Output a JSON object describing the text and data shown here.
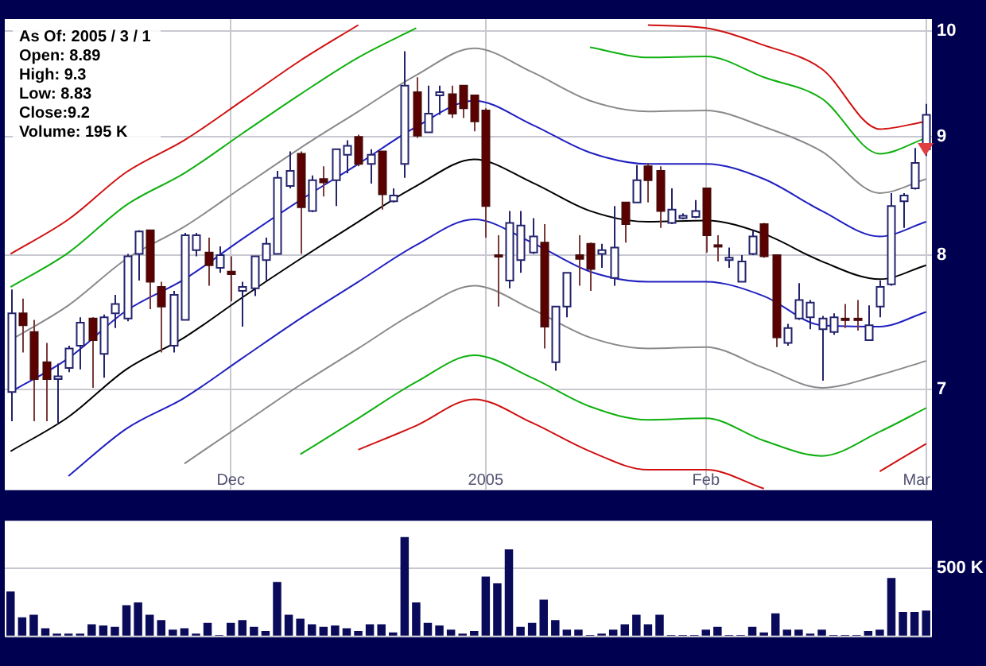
{
  "chart_data": [
    {
      "type": "candlestick",
      "annotations": [
        "As Of: 2005 / 3 / 1",
        "Open: 8.89",
        "High: 9.3",
        "Low: 8.83",
        "Close:9.2",
        "Volume: 195 K"
      ],
      "categories": [
        null,
        null,
        null,
        null,
        null,
        null,
        null,
        null,
        null,
        null,
        null,
        null,
        null,
        null,
        null,
        null,
        null,
        null,
        null,
        "Dec",
        null,
        null,
        null,
        null,
        null,
        null,
        null,
        null,
        null,
        null,
        null,
        null,
        null,
        null,
        null,
        null,
        null,
        null,
        null,
        null,
        null,
        "2005",
        null,
        null,
        null,
        null,
        null,
        null,
        null,
        null,
        null,
        null,
        null,
        null,
        null,
        null,
        null,
        null,
        null,
        null,
        "Feb",
        null,
        null,
        null,
        null,
        null,
        null,
        null,
        null,
        null,
        null,
        null,
        null,
        null,
        null,
        null,
        null,
        null,
        null,
        "Mar"
      ],
      "ohlc": [
        [
          6.98,
          7.73,
          6.78,
          7.55
        ],
        [
          7.55,
          7.66,
          7.26,
          7.46
        ],
        [
          7.41,
          7.5,
          6.78,
          7.07
        ],
        [
          7.19,
          7.33,
          6.78,
          7.07
        ],
        [
          7.07,
          7.18,
          6.77,
          7.09
        ],
        [
          7.15,
          7.31,
          7.12,
          7.29
        ],
        [
          7.31,
          7.52,
          7.14,
          7.48
        ],
        [
          7.51,
          7.52,
          7.01,
          7.35
        ],
        [
          7.25,
          7.54,
          7.08,
          7.52
        ],
        [
          7.55,
          7.69,
          7.44,
          7.62
        ],
        [
          7.51,
          8.01,
          7.49,
          7.99
        ],
        [
          8.01,
          8.2,
          7.8,
          8.19
        ],
        [
          8.2,
          8.2,
          7.58,
          7.79
        ],
        [
          7.75,
          7.79,
          7.26,
          7.6
        ],
        [
          7.31,
          7.72,
          7.26,
          7.69
        ],
        [
          7.5,
          8.18,
          7.5,
          8.16
        ],
        [
          8.04,
          8.18,
          7.99,
          8.16
        ],
        [
          8.02,
          8.14,
          7.76,
          7.92
        ],
        [
          7.9,
          8.07,
          7.86,
          8.0
        ],
        [
          7.87,
          7.99,
          7.64,
          7.85
        ],
        [
          7.72,
          7.79,
          7.45,
          7.75
        ],
        [
          7.74,
          7.99,
          7.68,
          7.99
        ],
        [
          7.96,
          8.14,
          7.8,
          8.09
        ],
        [
          8.01,
          8.7,
          8.01,
          8.64
        ],
        [
          8.57,
          8.87,
          8.55,
          8.7
        ],
        [
          8.85,
          8.87,
          8.01,
          8.39
        ],
        [
          8.36,
          8.66,
          8.35,
          8.62
        ],
        [
          8.63,
          8.74,
          8.48,
          8.6
        ],
        [
          8.62,
          8.89,
          8.4,
          8.89
        ],
        [
          8.84,
          8.97,
          8.68,
          8.92
        ],
        [
          9.0,
          9.02,
          8.74,
          8.76
        ],
        [
          8.76,
          8.89,
          8.59,
          8.84
        ],
        [
          8.87,
          8.87,
          8.37,
          8.5
        ],
        [
          8.44,
          8.55,
          8.43,
          8.49
        ],
        [
          8.76,
          9.8,
          8.64,
          9.47
        ],
        [
          9.41,
          9.55,
          8.99,
          9.01
        ],
        [
          9.04,
          9.47,
          9.04,
          9.21
        ],
        [
          9.38,
          9.47,
          9.2,
          9.41
        ],
        [
          9.39,
          9.47,
          9.17,
          9.21
        ],
        [
          9.47,
          9.47,
          9.17,
          9.26
        ],
        [
          9.38,
          9.38,
          9.05,
          9.14
        ],
        [
          9.24,
          9.26,
          8.14,
          8.4
        ],
        [
          8.0,
          8.16,
          7.6,
          7.99
        ],
        [
          7.8,
          8.36,
          7.74,
          8.26
        ],
        [
          7.96,
          8.36,
          7.86,
          8.24
        ],
        [
          8.02,
          8.3,
          8.01,
          8.15
        ],
        [
          8.1,
          8.25,
          7.29,
          7.45
        ],
        [
          7.19,
          7.6,
          7.13,
          7.6
        ],
        [
          7.6,
          7.86,
          7.52,
          7.86
        ],
        [
          8.0,
          8.16,
          7.76,
          7.97
        ],
        [
          8.09,
          8.1,
          7.72,
          7.89
        ],
        [
          8.01,
          8.09,
          7.9,
          8.04
        ],
        [
          7.82,
          8.4,
          7.76,
          8.06
        ],
        [
          8.43,
          8.43,
          8.1,
          8.25
        ],
        [
          8.43,
          8.75,
          8.43,
          8.62
        ],
        [
          8.74,
          8.77,
          8.43,
          8.62
        ],
        [
          8.7,
          8.74,
          8.22,
          8.36
        ],
        [
          8.26,
          8.55,
          8.25,
          8.37
        ],
        [
          8.3,
          8.34,
          8.29,
          8.32
        ],
        [
          8.31,
          8.45,
          8.3,
          8.36
        ],
        [
          8.55,
          8.55,
          8.02,
          8.16
        ],
        [
          8.08,
          8.16,
          7.95,
          8.07
        ],
        [
          7.96,
          8.06,
          7.9,
          7.98
        ],
        [
          7.79,
          8.0,
          7.79,
          7.95
        ],
        [
          8.01,
          8.2,
          8.0,
          8.15
        ],
        [
          8.25,
          8.26,
          7.98,
          7.99
        ],
        [
          8.0,
          8.0,
          7.3,
          7.37
        ],
        [
          7.33,
          7.47,
          7.31,
          7.44
        ],
        [
          7.51,
          7.78,
          7.5,
          7.65
        ],
        [
          7.52,
          7.65,
          7.43,
          7.63
        ],
        [
          7.43,
          7.53,
          7.06,
          7.51
        ],
        [
          7.41,
          7.55,
          7.39,
          7.52
        ],
        [
          7.51,
          7.62,
          7.44,
          7.5
        ],
        [
          7.51,
          7.65,
          7.42,
          7.5
        ],
        [
          7.35,
          7.61,
          7.35,
          7.46
        ],
        [
          7.6,
          7.8,
          7.52,
          7.75
        ],
        [
          7.77,
          8.51,
          7.76,
          8.4
        ],
        [
          8.44,
          8.51,
          8.22,
          8.49
        ],
        [
          8.55,
          8.9,
          8.54,
          8.77
        ],
        [
          8.89,
          9.3,
          8.83,
          9.2
        ]
      ],
      "series": [
        {
          "type": "line",
          "color": "#d01010",
          "values": [
            8.01,
            null,
            null,
            null,
            null,
            8.29,
            null,
            null,
            null,
            null,
            8.69,
            null,
            null,
            null,
            null,
            8.97,
            null,
            null,
            null,
            null,
            9.33,
            null,
            null,
            null,
            null,
            9.71,
            null,
            null,
            null,
            null,
            10.06,
            null,
            null,
            null,
            null,
            null,
            null,
            null,
            null,
            null,
            null,
            null,
            null,
            null,
            null,
            null,
            null,
            null,
            null,
            null,
            null,
            null,
            null,
            null,
            null,
            10.06,
            null,
            null,
            null,
            null,
            10.03,
            null,
            null,
            null,
            null,
            9.86,
            null,
            null,
            null,
            null,
            9.63,
            null,
            null,
            null,
            null,
            9.07,
            null,
            null,
            null,
            9.14
          ]
        },
        {
          "type": "line",
          "color": "#10b010",
          "values": [
            7.75,
            null,
            null,
            null,
            null,
            8.02,
            null,
            null,
            null,
            null,
            8.41,
            null,
            null,
            null,
            null,
            8.68,
            null,
            null,
            null,
            null,
            9.03,
            null,
            null,
            null,
            null,
            9.39,
            null,
            null,
            null,
            null,
            9.74,
            null,
            null,
            null,
            null,
            10.03,
            null,
            null,
            null,
            null,
            null,
            null,
            null,
            null,
            null,
            null,
            null,
            null,
            null,
            null,
            9.84,
            null,
            null,
            null,
            null,
            9.74,
            null,
            null,
            null,
            null,
            9.75,
            null,
            null,
            null,
            null,
            9.55,
            null,
            null,
            null,
            null,
            9.35,
            null,
            null,
            null,
            null,
            8.85,
            null,
            null,
            null,
            8.99
          ]
        },
        {
          "type": "line",
          "color": "#8a8a8a",
          "values": [
            7.35,
            null,
            null,
            null,
            null,
            7.61,
            null,
            null,
            null,
            null,
            7.97,
            null,
            null,
            null,
            null,
            8.23,
            null,
            null,
            null,
            null,
            8.56,
            null,
            null,
            null,
            null,
            8.9,
            null,
            null,
            null,
            null,
            9.23,
            null,
            null,
            null,
            null,
            9.57,
            null,
            null,
            null,
            null,
            9.83,
            null,
            null,
            null,
            null,
            9.6,
            null,
            null,
            null,
            null,
            9.33,
            null,
            null,
            null,
            null,
            9.23,
            null,
            null,
            null,
            null,
            9.24,
            null,
            null,
            null,
            null,
            9.09,
            null,
            null,
            null,
            null,
            8.87,
            null,
            null,
            null,
            null,
            8.51,
            null,
            null,
            null,
            8.63
          ]
        },
        {
          "type": "line",
          "color": "#2020c0",
          "values": [
            6.98,
            null,
            null,
            null,
            null,
            7.22,
            null,
            null,
            null,
            null,
            7.57,
            null,
            null,
            null,
            null,
            7.81,
            null,
            null,
            null,
            null,
            8.13,
            null,
            null,
            null,
            null,
            8.45,
            null,
            null,
            null,
            null,
            8.76,
            null,
            null,
            null,
            null,
            9.09,
            null,
            null,
            null,
            null,
            9.33,
            null,
            null,
            null,
            null,
            9.11,
            null,
            null,
            null,
            null,
            8.86,
            null,
            null,
            null,
            null,
            8.76,
            null,
            null,
            null,
            null,
            8.76,
            null,
            null,
            null,
            null,
            8.63,
            null,
            null,
            null,
            null,
            8.36,
            null,
            null,
            null,
            null,
            8.15,
            null,
            null,
            null,
            8.27
          ]
        },
        {
          "type": "line",
          "color": "#000000",
          "values": [
            6.58,
            null,
            null,
            null,
            null,
            6.81,
            null,
            null,
            null,
            null,
            7.14,
            null,
            null,
            null,
            null,
            7.37,
            null,
            null,
            null,
            null,
            7.67,
            null,
            null,
            null,
            null,
            7.97,
            null,
            null,
            null,
            null,
            8.27,
            null,
            null,
            null,
            null,
            8.57,
            null,
            null,
            null,
            null,
            8.8,
            null,
            null,
            null,
            null,
            8.6,
            null,
            null,
            null,
            null,
            8.36,
            null,
            null,
            null,
            null,
            8.27,
            null,
            null,
            null,
            null,
            8.28,
            null,
            null,
            null,
            null,
            8.17,
            null,
            null,
            null,
            null,
            7.95,
            null,
            null,
            null,
            null,
            7.81,
            null,
            null,
            null,
            7.92
          ]
        },
        {
          "type": "line",
          "color": "#2020c0",
          "values": [
            null,
            null,
            null,
            null,
            null,
            6.42,
            null,
            null,
            null,
            null,
            6.73,
            null,
            null,
            null,
            null,
            6.94,
            null,
            null,
            null,
            null,
            7.22,
            null,
            null,
            null,
            null,
            7.51,
            null,
            null,
            null,
            null,
            7.79,
            null,
            null,
            null,
            null,
            8.08,
            null,
            null,
            null,
            null,
            8.29,
            null,
            null,
            null,
            null,
            8.1,
            null,
            null,
            null,
            null,
            7.87,
            null,
            null,
            null,
            null,
            7.79,
            null,
            null,
            null,
            null,
            7.79,
            null,
            null,
            null,
            null,
            7.68,
            null,
            null,
            null,
            null,
            7.46,
            null,
            null,
            null,
            null,
            7.45,
            null,
            null,
            null,
            7.56
          ]
        },
        {
          "type": "line",
          "color": "#8a8a8a",
          "values": [
            null,
            null,
            null,
            null,
            null,
            null,
            null,
            null,
            null,
            null,
            null,
            null,
            null,
            null,
            null,
            6.5,
            null,
            null,
            null,
            null,
            6.76,
            null,
            null,
            null,
            null,
            7.03,
            null,
            null,
            null,
            null,
            7.29,
            null,
            null,
            null,
            null,
            7.56,
            null,
            null,
            null,
            null,
            7.76,
            null,
            null,
            null,
            null,
            7.58,
            null,
            null,
            null,
            null,
            7.37,
            null,
            null,
            null,
            null,
            7.29,
            null,
            null,
            null,
            null,
            7.3,
            null,
            null,
            null,
            null,
            7.15,
            null,
            null,
            null,
            null,
            7.01,
            null,
            null,
            null,
            null,
            7.1,
            null,
            null,
            null,
            7.2
          ]
        },
        {
          "type": "line",
          "color": "#10b010",
          "values": [
            null,
            null,
            null,
            null,
            null,
            null,
            null,
            null,
            null,
            null,
            null,
            null,
            null,
            null,
            null,
            null,
            null,
            null,
            null,
            null,
            null,
            null,
            null,
            null,
            null,
            6.56,
            null,
            null,
            null,
            null,
            6.8,
            null,
            null,
            null,
            null,
            7.05,
            null,
            null,
            null,
            null,
            7.24,
            null,
            null,
            null,
            null,
            7.08,
            null,
            null,
            null,
            null,
            6.88,
            null,
            null,
            null,
            null,
            6.79,
            null,
            null,
            null,
            null,
            6.8,
            null,
            null,
            null,
            null,
            6.65,
            null,
            null,
            null,
            null,
            6.55,
            null,
            null,
            null,
            null,
            6.71,
            null,
            null,
            null,
            6.87
          ]
        },
        {
          "type": "line",
          "color": "#d01010",
          "values": [
            null,
            null,
            null,
            null,
            null,
            null,
            null,
            null,
            null,
            null,
            null,
            null,
            null,
            null,
            null,
            null,
            null,
            null,
            null,
            null,
            null,
            null,
            null,
            null,
            null,
            null,
            null,
            null,
            null,
            null,
            6.59,
            null,
            null,
            null,
            null,
            6.75,
            null,
            null,
            null,
            null,
            6.93,
            null,
            null,
            null,
            null,
            6.77,
            null,
            null,
            null,
            null,
            6.58,
            null,
            null,
            null,
            null,
            6.46,
            null,
            null,
            null,
            null,
            6.46,
            null,
            null,
            null,
            null,
            6.34,
            null,
            null,
            null,
            null,
            null,
            null,
            null,
            null,
            null,
            6.45,
            null,
            null,
            null,
            6.63
          ]
        }
      ],
      "ylim": [
        6.33,
        10.12
      ],
      "yticks": [
        7,
        8,
        9,
        10
      ],
      "log": true,
      "grid": true
    },
    {
      "type": "bar",
      "categories": [
        null,
        null,
        null,
        null,
        null,
        null,
        null,
        null,
        null,
        null,
        null,
        null,
        null,
        null,
        null,
        null,
        null,
        null,
        null,
        null,
        null,
        null,
        null,
        null,
        null,
        null,
        null,
        null,
        null,
        null,
        null,
        null,
        null,
        null,
        null,
        null,
        null,
        null,
        null,
        null,
        null,
        null,
        null,
        null,
        null,
        null,
        null,
        null,
        null,
        null,
        null,
        null,
        null,
        null,
        null,
        null,
        null,
        null,
        null,
        null,
        null,
        null,
        null,
        null,
        null,
        null,
        null,
        null,
        null,
        null,
        null,
        null,
        null,
        null,
        null,
        null,
        null,
        null,
        null,
        null
      ],
      "values": [
        330,
        140,
        160,
        60,
        20,
        20,
        20,
        90,
        80,
        70,
        230,
        250,
        160,
        120,
        50,
        60,
        20,
        100,
        10,
        100,
        120,
        70,
        40,
        400,
        160,
        130,
        90,
        70,
        80,
        60,
        40,
        90,
        90,
        30,
        730,
        250,
        100,
        80,
        50,
        20,
        40,
        440,
        390,
        640,
        70,
        100,
        270,
        120,
        50,
        50,
        10,
        20,
        50,
        90,
        160,
        90,
        160,
        10,
        10,
        10,
        50,
        70,
        10,
        10,
        70,
        30,
        170,
        50,
        50,
        20,
        50,
        10,
        10,
        10,
        40,
        50,
        430,
        180,
        180,
        190
      ],
      "color": "#0a0a5a",
      "ylim": [
        0,
        850
      ],
      "yticks": [
        {
          "value": 0,
          "label": null
        },
        {
          "value": 500,
          "label": "500 K"
        }
      ],
      "grid": "y",
      "tick_labels": "y"
    }
  ]
}
